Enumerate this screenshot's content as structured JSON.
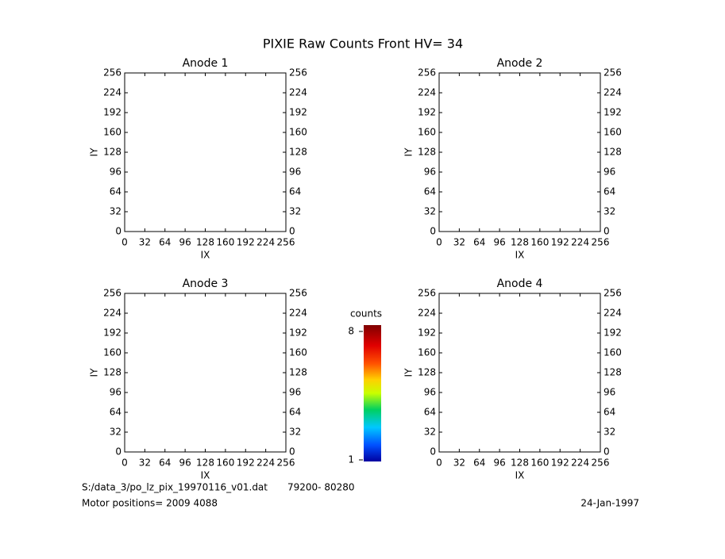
{
  "title": "PIXIE Raw Counts Front HV= 34",
  "chart_data": [
    {
      "type": "scatter",
      "title": "Anode 1",
      "xlabel": "IX",
      "ylabel": "IY",
      "xlim": [
        0,
        256
      ],
      "ylim": [
        0,
        256
      ],
      "xticks": [
        0,
        32,
        64,
        96,
        128,
        160,
        192,
        224,
        256
      ],
      "yticks": [
        0,
        32,
        64,
        96,
        128,
        160,
        192,
        224,
        256
      ]
    },
    {
      "type": "scatter",
      "title": "Anode 2",
      "xlabel": "IX",
      "ylabel": "IY",
      "xlim": [
        0,
        256
      ],
      "ylim": [
        0,
        256
      ],
      "xticks": [
        0,
        32,
        64,
        96,
        128,
        160,
        192,
        224,
        256
      ],
      "yticks": [
        0,
        32,
        64,
        96,
        128,
        160,
        192,
        224,
        256
      ]
    },
    {
      "type": "scatter",
      "title": "Anode 3",
      "xlabel": "IX",
      "ylabel": "IY",
      "xlim": [
        0,
        256
      ],
      "ylim": [
        0,
        256
      ],
      "xticks": [
        0,
        32,
        64,
        96,
        128,
        160,
        192,
        224,
        256
      ],
      "yticks": [
        0,
        32,
        64,
        96,
        128,
        160,
        192,
        224,
        256
      ]
    },
    {
      "type": "scatter",
      "title": "Anode 4",
      "xlabel": "IX",
      "ylabel": "IY",
      "xlim": [
        0,
        256
      ],
      "ylim": [
        0,
        256
      ],
      "xticks": [
        0,
        32,
        64,
        96,
        128,
        160,
        192,
        224,
        256
      ],
      "yticks": [
        0,
        32,
        64,
        96,
        128,
        160,
        192,
        224,
        256
      ]
    }
  ],
  "colorbar": {
    "label": "counts",
    "lim": [
      1,
      8
    ],
    "ticks": [
      1,
      8
    ]
  },
  "footer": {
    "file": "S:/data_3/po_lz_pix_19970116_v01.dat",
    "range": "79200- 80280",
    "motor": "Motor positions= 2009 4088",
    "date": "24-Jan-1997"
  }
}
